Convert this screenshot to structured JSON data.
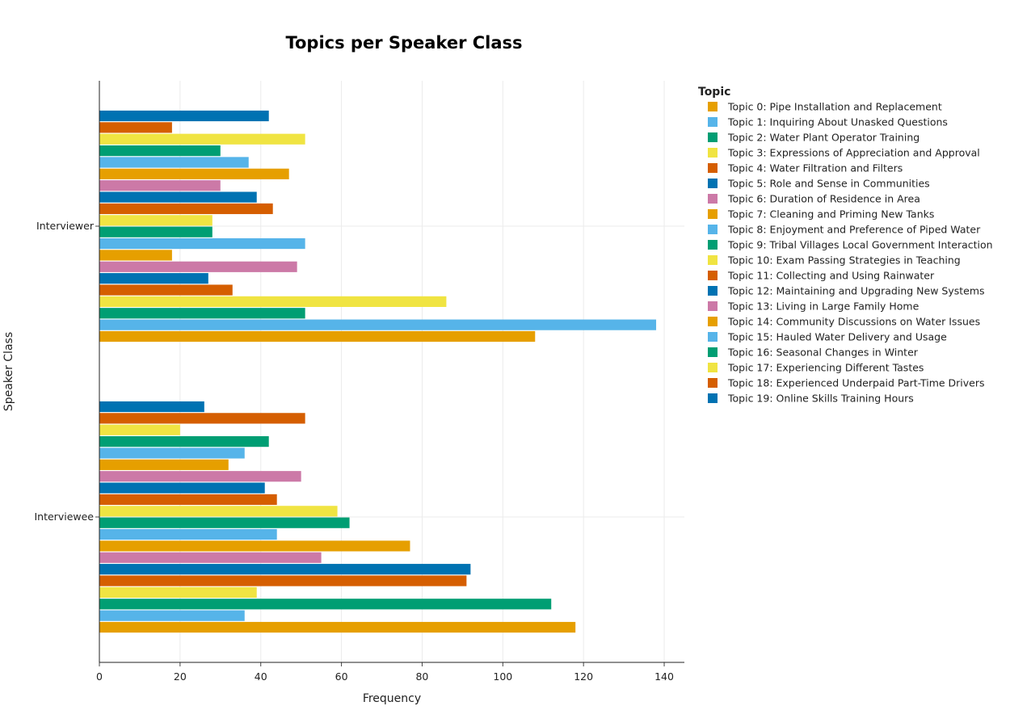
{
  "chart_data": {
    "type": "bar",
    "orientation": "horizontal",
    "title": "Topics per Speaker Class",
    "xlabel": "Frequency",
    "ylabel": "Speaker Class",
    "xlim": [
      0,
      145
    ],
    "xticks": [
      0,
      20,
      40,
      60,
      80,
      100,
      120,
      140
    ],
    "grid": true,
    "legend_title": "Topic",
    "legend_position": "right",
    "categories": [
      "Interviewer",
      "Interviewee"
    ],
    "series": [
      {
        "name": "Topic 0: Pipe Installation and Replacement",
        "color": "#E69F00",
        "values": [
          108,
          118
        ]
      },
      {
        "name": "Topic 1: Inquiring About Unasked Questions",
        "color": "#56B4E9",
        "values": [
          138,
          36
        ]
      },
      {
        "name": "Topic 2: Water Plant Operator Training",
        "color": "#009E73",
        "values": [
          51,
          112
        ]
      },
      {
        "name": "Topic 3: Expressions of Appreciation and Approval",
        "color": "#F0E442",
        "values": [
          86,
          39
        ]
      },
      {
        "name": "Topic 4: Water Filtration and Filters",
        "color": "#D55E00",
        "values": [
          33,
          91
        ]
      },
      {
        "name": "Topic 5: Role and Sense in Communities",
        "color": "#0072B2",
        "values": [
          27,
          92
        ]
      },
      {
        "name": "Topic 6: Duration of Residence in Area",
        "color": "#CC79A7",
        "values": [
          49,
          55
        ]
      },
      {
        "name": "Topic 7: Cleaning and Priming New Tanks",
        "color": "#E69F00",
        "values": [
          18,
          77
        ]
      },
      {
        "name": "Topic 8: Enjoyment and Preference of Piped Water",
        "color": "#56B4E9",
        "values": [
          51,
          44
        ]
      },
      {
        "name": "Topic 9: Tribal Villages Local Government Interaction",
        "color": "#009E73",
        "values": [
          28,
          62
        ]
      },
      {
        "name": "Topic 10: Exam Passing Strategies in Teaching",
        "color": "#F0E442",
        "values": [
          28,
          59
        ]
      },
      {
        "name": "Topic 11: Collecting and Using Rainwater",
        "color": "#D55E00",
        "values": [
          43,
          44
        ]
      },
      {
        "name": "Topic 12: Maintaining and Upgrading New Systems",
        "color": "#0072B2",
        "values": [
          39,
          41
        ]
      },
      {
        "name": "Topic 13: Living in Large Family Home",
        "color": "#CC79A7",
        "values": [
          30,
          50
        ]
      },
      {
        "name": "Topic 14: Community Discussions on Water Issues",
        "color": "#E69F00",
        "values": [
          47,
          32
        ]
      },
      {
        "name": "Topic 15: Hauled Water Delivery and Usage",
        "color": "#56B4E9",
        "values": [
          37,
          36
        ]
      },
      {
        "name": "Topic 16: Seasonal Changes in Winter",
        "color": "#009E73",
        "values": [
          30,
          42
        ]
      },
      {
        "name": "Topic 17: Experiencing Different Tastes",
        "color": "#F0E442",
        "values": [
          51,
          20
        ]
      },
      {
        "name": "Topic 18: Experienced Underpaid Part-Time Drivers",
        "color": "#D55E00",
        "values": [
          18,
          51
        ]
      },
      {
        "name": "Topic 19: Online Skills Training Hours",
        "color": "#0072B2",
        "values": [
          42,
          26
        ]
      }
    ]
  }
}
